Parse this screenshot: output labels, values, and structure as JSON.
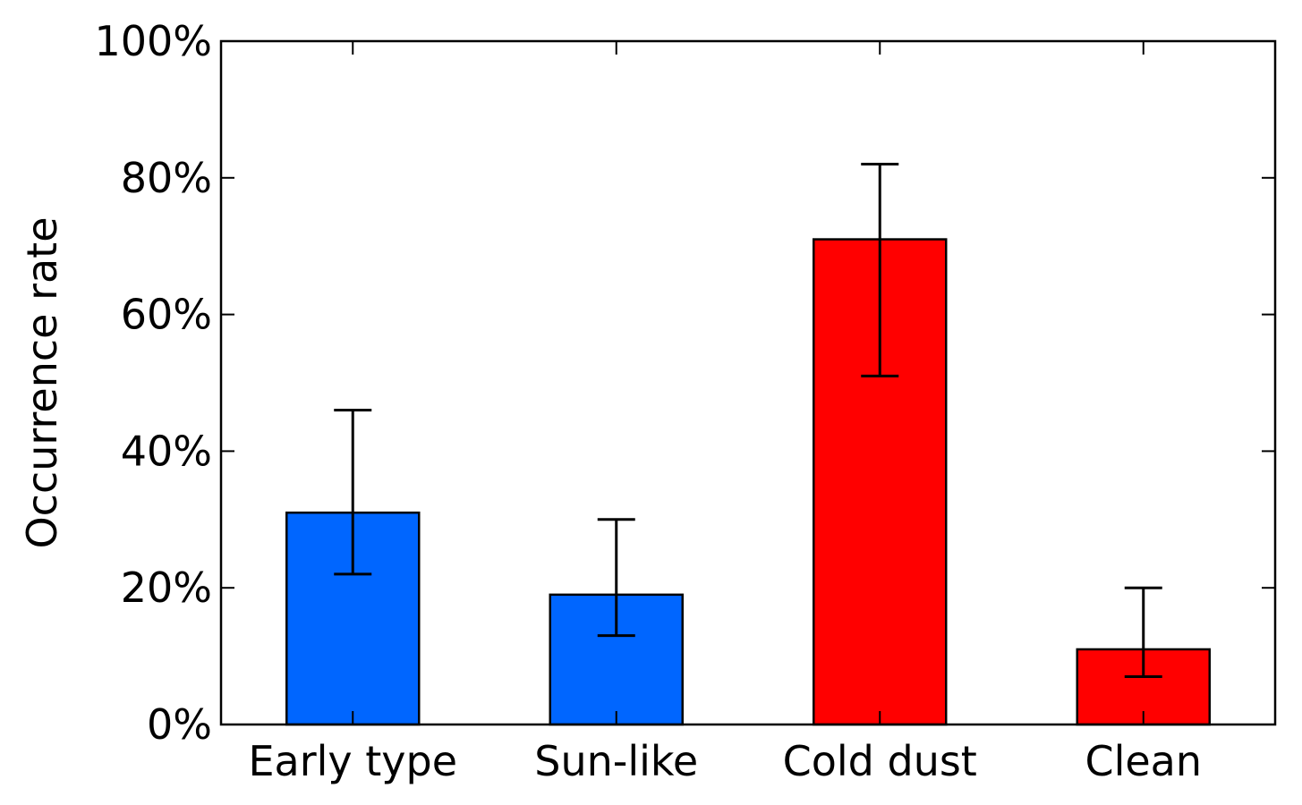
{
  "chart_data": {
    "type": "bar",
    "title": "",
    "xlabel": "",
    "ylabel": "Occurrence rate",
    "ylim": [
      0,
      100
    ],
    "yticks": [
      0,
      20,
      40,
      60,
      80,
      100
    ],
    "ytick_labels": [
      "0%",
      "20%",
      "40%",
      "60%",
      "80%",
      "100%"
    ],
    "grid": false,
    "legend": "none",
    "categories": [
      "Early type",
      "Sun-like",
      "Cold dust",
      "Clean"
    ],
    "values": [
      31,
      19,
      71,
      11
    ],
    "error_low": [
      22,
      13,
      51,
      7
    ],
    "error_high": [
      46,
      30,
      82,
      20
    ],
    "colors": [
      "#0066ff",
      "#0066ff",
      "#ff0000",
      "#ff0000"
    ]
  }
}
